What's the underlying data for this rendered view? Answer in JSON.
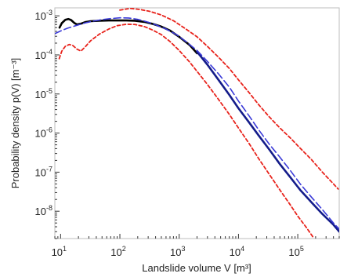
{
  "chart_data": {
    "type": "line",
    "x_scale": "log",
    "y_scale": "log",
    "xlim": [
      8,
      500000
    ],
    "ylim": [
      2e-09,
      0.0016
    ],
    "xlabel": "Landslide volume  V  [m³]",
    "ylabel": "Probability density  p(V)  [m⁻³]",
    "x_ticks": [
      {
        "value": 10,
        "base": "10",
        "exp": "1"
      },
      {
        "value": 100,
        "base": "10",
        "exp": "2"
      },
      {
        "value": 1000,
        "base": "10",
        "exp": "3"
      },
      {
        "value": 10000,
        "base": "10",
        "exp": "4"
      },
      {
        "value": 100000,
        "base": "10",
        "exp": "5"
      }
    ],
    "y_ticks": [
      {
        "value": 0.001,
        "base": "10",
        "exp": "-3"
      },
      {
        "value": 0.0001,
        "base": "10",
        "exp": "-4"
      },
      {
        "value": 1e-05,
        "base": "10",
        "exp": "-5"
      },
      {
        "value": 1e-06,
        "base": "10",
        "exp": "-6"
      },
      {
        "value": 1e-07,
        "base": "10",
        "exp": "-7"
      },
      {
        "value": 1e-08,
        "base": "10",
        "exp": "-8"
      }
    ],
    "grid": false,
    "series": [
      {
        "id": "observed",
        "style": "solid",
        "color": "#000000",
        "width": 2.6,
        "points": [
          [
            9.6,
            0.0005
          ],
          [
            10.5,
            0.00065
          ],
          [
            12,
            0.00079
          ],
          [
            13.5,
            0.00083
          ],
          [
            15,
            0.00078
          ],
          [
            17,
            0.00066
          ],
          [
            19,
            0.0006
          ],
          [
            22,
            0.00063
          ],
          [
            26,
            0.00069
          ],
          [
            32,
            0.00073
          ],
          [
            45,
            0.00075
          ],
          [
            65,
            0.00076
          ],
          [
            90,
            0.00076
          ],
          [
            130,
            0.00076
          ],
          [
            180,
            0.00075
          ],
          [
            260,
            0.0007
          ],
          [
            360,
            0.00062
          ],
          [
            500,
            0.00053
          ],
          [
            700,
            0.00042
          ],
          [
            1000,
            0.00029
          ],
          [
            1500,
            0.00018
          ],
          [
            2000,
            0.00011
          ]
        ]
      },
      {
        "id": "fit",
        "style": "dashed",
        "color": "#3a3ad8",
        "width": 1.6,
        "points": [
          [
            8,
            0.00035
          ],
          [
            10,
            0.00041
          ],
          [
            13,
            0.00048
          ],
          [
            18,
            0.00056
          ],
          [
            25,
            0.00065
          ],
          [
            35,
            0.00073
          ],
          [
            50,
            0.0008
          ],
          [
            70,
            0.00085
          ],
          [
            100,
            0.00089
          ],
          [
            140,
            0.00088
          ],
          [
            200,
            0.00081
          ],
          [
            280,
            0.00071
          ],
          [
            400,
            0.00059
          ],
          [
            600,
            0.00046
          ],
          [
            900,
            0.00033
          ],
          [
            1300,
            0.00022
          ],
          [
            2000,
            0.00013
          ],
          [
            3000,
            6.8e-05
          ],
          [
            4500,
            3.4e-05
          ],
          [
            7000,
            1.5e-05
          ],
          [
            10000,
            6.6e-06
          ],
          [
            15000,
            2.8e-06
          ],
          [
            22000,
            1.2e-06
          ],
          [
            33000,
            5.2e-07
          ],
          [
            50000,
            2.4e-07
          ],
          [
            75000,
            1.1e-07
          ],
          [
            110000,
            5e-08
          ],
          [
            170000,
            2.3e-08
          ],
          [
            260000,
            1.1e-08
          ],
          [
            400000,
            5e-09
          ],
          [
            500000,
            3.5e-09
          ]
        ]
      },
      {
        "id": "kernel-estimate",
        "style": "solid",
        "color": "#141c8a",
        "width": 2.6,
        "points": [
          [
            2000,
            0.00012
          ],
          [
            3000,
            5.6e-05
          ],
          [
            4500,
            2.4e-05
          ],
          [
            7000,
            9.5e-06
          ],
          [
            10000,
            4.3e-06
          ],
          [
            15000,
            1.9e-06
          ],
          [
            22000,
            8.6e-07
          ],
          [
            33000,
            3.8e-07
          ],
          [
            50000,
            1.6e-07
          ],
          [
            75000,
            7.4e-08
          ],
          [
            110000,
            3.5e-08
          ],
          [
            170000,
            1.7e-08
          ],
          [
            260000,
            8.5e-09
          ],
          [
            400000,
            4.5e-09
          ],
          [
            500000,
            3e-09
          ]
        ]
      },
      {
        "id": "upper-bound",
        "style": "dashed",
        "color": "#e8231c",
        "width": 1.8,
        "points": [
          [
            100,
            0.0014
          ],
          [
            150,
            0.00155
          ],
          [
            220,
            0.00145
          ],
          [
            320,
            0.0013
          ],
          [
            500,
            0.00105
          ],
          [
            800,
            0.00075
          ],
          [
            1200,
            0.0005
          ],
          [
            2000,
            0.00029
          ],
          [
            3000,
            0.000165
          ],
          [
            4500,
            9e-05
          ],
          [
            7000,
            4.5e-05
          ],
          [
            10000,
            2.3e-05
          ],
          [
            15000,
            1.1e-05
          ],
          [
            22000,
            5.3e-06
          ],
          [
            33000,
            2.6e-06
          ],
          [
            50000,
            1.35e-06
          ],
          [
            75000,
            7.5e-07
          ],
          [
            110000,
            4.1e-07
          ],
          [
            170000,
            2.1e-07
          ],
          [
            260000,
            1e-07
          ],
          [
            400000,
            5e-08
          ],
          [
            480000,
            3.7e-08
          ]
        ]
      },
      {
        "id": "lower-bound",
        "style": "dashed",
        "color": "#e8231c",
        "width": 1.8,
        "points": [
          [
            9.5,
            8e-05
          ],
          [
            10.5,
            0.000125
          ],
          [
            12,
            0.000165
          ],
          [
            14,
            0.000185
          ],
          [
            16,
            0.000175
          ],
          [
            19,
            0.00014
          ],
          [
            22,
            0.000125
          ],
          [
            26,
            0.00016
          ],
          [
            32,
            0.00023
          ],
          [
            45,
            0.00034
          ],
          [
            65,
            0.00046
          ],
          [
            90,
            0.00056
          ],
          [
            130,
            0.00061
          ],
          [
            180,
            0.0006
          ],
          [
            260,
            0.00053
          ],
          [
            360,
            0.00043
          ],
          [
            500,
            0.00033
          ],
          [
            700,
            0.00022
          ],
          [
            1000,
            0.00013
          ],
          [
            1500,
            6.6e-05
          ],
          [
            2000,
            3.8e-05
          ],
          [
            3000,
            1.75e-05
          ],
          [
            4500,
            7.6e-06
          ],
          [
            7000,
            3e-06
          ],
          [
            10000,
            1.35e-06
          ],
          [
            15000,
            5.5e-07
          ],
          [
            22000,
            2.2e-07
          ],
          [
            33000,
            8.8e-08
          ],
          [
            50000,
            3.5e-08
          ],
          [
            75000,
            1.45e-08
          ],
          [
            100000,
            7.5e-09
          ],
          [
            140000,
            3.8e-09
          ],
          [
            180000,
            2.2e-09
          ]
        ]
      }
    ]
  }
}
